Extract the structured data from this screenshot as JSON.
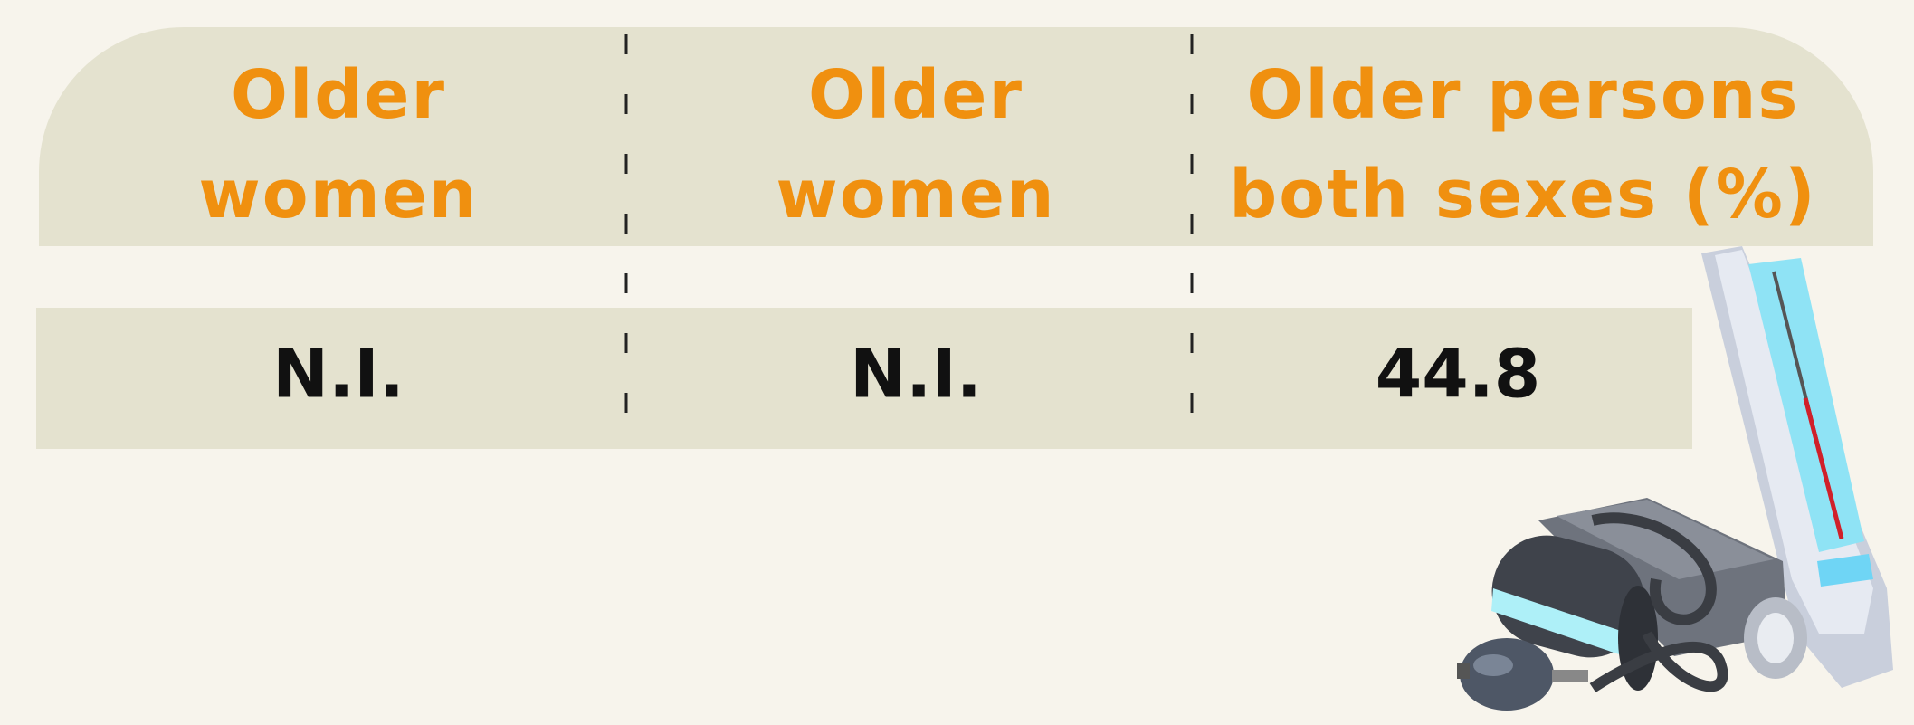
{
  "table": {
    "headers": [
      [
        "Older",
        "women"
      ],
      [
        "Older",
        "women"
      ],
      [
        "Older persons",
        "both sexes (%)"
      ]
    ],
    "rows": [
      [
        "N.I.",
        "N.I.",
        "44.8"
      ]
    ]
  }
}
